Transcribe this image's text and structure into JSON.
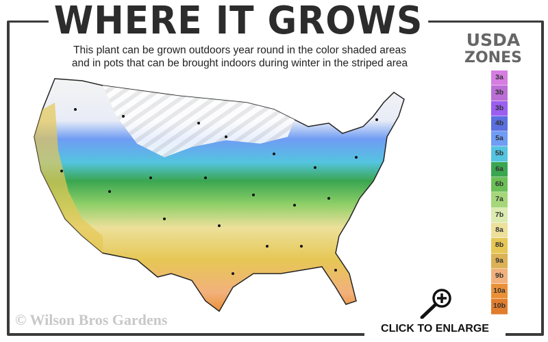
{
  "header": {
    "title": "WHERE IT GROWS",
    "subtitle_line1": "This plant can be grown outdoors year round in the color shaded areas",
    "subtitle_line2": "and in pots that can be brought indoors during winter in the striped area"
  },
  "legend": {
    "title_line1": "USDA",
    "title_line2": "ZONES",
    "zones": [
      {
        "label": "3a",
        "color": "#d57de0"
      },
      {
        "label": "3b",
        "color": "#bb6fd6"
      },
      {
        "label": "3b",
        "color": "#9a5ef0"
      },
      {
        "label": "4b",
        "color": "#5a6fe0"
      },
      {
        "label": "5a",
        "color": "#6f9cf4"
      },
      {
        "label": "5b",
        "color": "#54c4e0"
      },
      {
        "label": "6a",
        "color": "#3aa650"
      },
      {
        "label": "6b",
        "color": "#6cbf55"
      },
      {
        "label": "7a",
        "color": "#a5d77a"
      },
      {
        "label": "7b",
        "color": "#dcebb0"
      },
      {
        "label": "8a",
        "color": "#ece09a"
      },
      {
        "label": "8b",
        "color": "#e6c755"
      },
      {
        "label": "9a",
        "color": "#dcb256"
      },
      {
        "label": "9b",
        "color": "#f2b17c"
      },
      {
        "label": "10a",
        "color": "#ea9138"
      },
      {
        "label": "10b",
        "color": "#e27d2e"
      }
    ]
  },
  "footer": {
    "copyright": "© Wilson Bros Gardens",
    "enlarge_label": "CLICK TO ENLARGE"
  },
  "icons": {
    "enlarge": "magnifier-plus-icon"
  }
}
